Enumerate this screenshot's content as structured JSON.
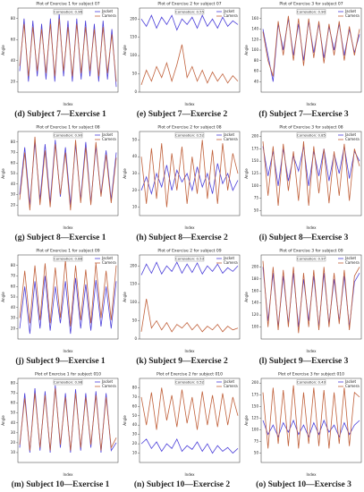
{
  "chart_data": [
    {
      "type": "line",
      "title": "Plot of Exercise 1 for subject 07",
      "caption": "(d) Subject 7—Exercise 1",
      "correlation_label": "Correlation: 0.96",
      "xlabel": "Index",
      "ylabel": "Angle",
      "ylim": [
        10,
        90
      ],
      "yticks": [
        20,
        40,
        60,
        80
      ],
      "series": [
        {
          "name": "Jacket",
          "color": "#4b3fd9",
          "values": [
            30,
            80,
            20,
            78,
            25,
            75,
            22,
            80,
            20,
            85,
            25,
            78,
            20,
            80,
            22,
            78,
            25,
            75,
            20,
            78,
            22,
            70,
            15
          ]
        },
        {
          "name": "Camera",
          "color": "#c0603a",
          "values": [
            35,
            75,
            25,
            72,
            30,
            70,
            28,
            75,
            25,
            80,
            30,
            72,
            25,
            75,
            28,
            72,
            30,
            70,
            25,
            72,
            28,
            65,
            20
          ]
        }
      ]
    },
    {
      "type": "line",
      "title": "Plot of Exercise 2 for subject 07",
      "caption": "(e) Subject 7—Exercise 2",
      "correlation_label": "Correlation: 0.55",
      "xlabel": "Index",
      "ylabel": "Angle",
      "ylim": [
        0,
        230
      ],
      "yticks": [
        0,
        50,
        100,
        150,
        200
      ],
      "series": [
        {
          "name": "Jacket",
          "color": "#4b3fd9",
          "values": [
            200,
            180,
            210,
            175,
            205,
            185,
            210,
            170,
            200,
            185,
            205,
            175,
            210,
            180,
            200,
            175,
            205,
            180,
            195,
            185
          ]
        },
        {
          "name": "Camera",
          "color": "#c0603a",
          "values": [
            20,
            60,
            30,
            70,
            40,
            80,
            30,
            75,
            130,
            40,
            70,
            30,
            60,
            25,
            55,
            30,
            50,
            25,
            45,
            30
          ]
        }
      ]
    },
    {
      "type": "line",
      "title": "Plot of Exercise 3 for subject 07",
      "caption": "(f) Subject 7—Exercise 3",
      "correlation_label": "Correlation: 0.90",
      "xlabel": "Index",
      "ylabel": "Angle",
      "ylim": [
        20,
        180
      ],
      "yticks": [
        40,
        60,
        80,
        100,
        120,
        140,
        160
      ],
      "series": [
        {
          "name": "Jacket",
          "color": "#4b3fd9",
          "values": [
            140,
            90,
            40,
            150,
            100,
            160,
            90,
            150,
            80,
            155,
            95,
            150,
            85,
            145,
            100,
            150,
            90,
            140,
            95,
            130
          ]
        },
        {
          "name": "Camera",
          "color": "#c0603a",
          "values": [
            135,
            80,
            50,
            155,
            90,
            165,
            80,
            160,
            70,
            160,
            85,
            155,
            75,
            150,
            90,
            155,
            80,
            145,
            90,
            140
          ]
        }
      ]
    },
    {
      "type": "line",
      "title": "Plot of Exercise 1 for subject 08",
      "caption": "(g) Subject 8—Exercise 1",
      "correlation_label": "Correlation: 0.90",
      "xlabel": "Index",
      "ylabel": "Angle",
      "ylim": [
        10,
        90
      ],
      "yticks": [
        20,
        30,
        40,
        50,
        60,
        70,
        80
      ],
      "series": [
        {
          "name": "Jacket",
          "color": "#4b3fd9",
          "values": [
            30,
            75,
            20,
            80,
            25,
            78,
            22,
            82,
            28,
            75,
            20,
            78,
            25,
            80,
            22,
            76,
            30,
            72,
            25,
            70
          ]
        },
        {
          "name": "Camera",
          "color": "#c0603a",
          "values": [
            25,
            70,
            15,
            85,
            20,
            72,
            18,
            78,
            30,
            70,
            15,
            82,
            22,
            75,
            20,
            80,
            28,
            68,
            22,
            65
          ]
        }
      ]
    },
    {
      "type": "line",
      "title": "Plot of Exercise 2 for subject 08",
      "caption": "(h) Subject 8—Exercise 2",
      "correlation_label": "Correlation: 0.52",
      "xlabel": "Index",
      "ylabel": "Angle",
      "ylim": [
        5,
        55
      ],
      "yticks": [
        10,
        20,
        30,
        40,
        50
      ],
      "series": [
        {
          "name": "Jacket",
          "color": "#4b3fd9",
          "values": [
            20,
            28,
            18,
            30,
            22,
            35,
            20,
            32,
            25,
            30,
            20,
            34,
            22,
            30,
            18,
            36,
            24,
            30,
            20,
            26
          ]
        },
        {
          "name": "Camera",
          "color": "#c0603a",
          "values": [
            40,
            12,
            45,
            15,
            48,
            10,
            42,
            20,
            46,
            12,
            40,
            18,
            50,
            15,
            44,
            12,
            48,
            20,
            42,
            30
          ]
        }
      ]
    },
    {
      "type": "line",
      "title": "Plot of Exercise 3 for subject 08",
      "caption": "(i) Subject 8—Exercise 3",
      "correlation_label": "Correlation: 0.85",
      "xlabel": "Index",
      "ylabel": "Angle",
      "ylim": [
        40,
        210
      ],
      "yticks": [
        50,
        75,
        100,
        125,
        150,
        175,
        200
      ],
      "series": [
        {
          "name": "Jacket",
          "color": "#4b3fd9",
          "values": [
            180,
            120,
            170,
            100,
            175,
            110,
            160,
            130,
            180,
            100,
            170,
            120,
            175,
            110,
            165,
            125,
            180,
            115,
            170,
            150
          ]
        },
        {
          "name": "Camera",
          "color": "#c0603a",
          "values": [
            190,
            80,
            180,
            60,
            185,
            90,
            170,
            70,
            190,
            60,
            180,
            85,
            175,
            65,
            170,
            80,
            185,
            70,
            175,
            140
          ]
        }
      ]
    },
    {
      "type": "line",
      "title": "Plot of Exercise 1 for subject 09",
      "caption": "(j) Subject 9—Exercise 1",
      "correlation_label": "Correlation: 0.88",
      "xlabel": "Index",
      "ylabel": "Angle",
      "ylim": [
        10,
        90
      ],
      "yticks": [
        20,
        30,
        40,
        50,
        60,
        70,
        80
      ],
      "series": [
        {
          "name": "Jacket",
          "color": "#4b3fd9",
          "values": [
            20,
            60,
            15,
            65,
            20,
            70,
            18,
            60,
            25,
            65,
            15,
            68,
            20,
            62,
            18,
            66,
            22,
            60,
            20,
            65
          ]
        },
        {
          "name": "Camera",
          "color": "#c0603a",
          "values": [
            30,
            75,
            25,
            80,
            28,
            82,
            25,
            78,
            30,
            85,
            22,
            80,
            28,
            76,
            25,
            82,
            30,
            75,
            28,
            80
          ]
        }
      ]
    },
    {
      "type": "line",
      "title": "Plot of Exercise 2 for subject 09",
      "caption": "(k) Subject 9—Exercise 2",
      "correlation_label": "Correlation: 0.53",
      "xlabel": "Index",
      "ylabel": "Angle",
      "ylim": [
        0,
        230
      ],
      "yticks": [
        0,
        50,
        100,
        150,
        200
      ],
      "series": [
        {
          "name": "Jacket",
          "color": "#4b3fd9",
          "values": [
            175,
            205,
            180,
            210,
            178,
            200,
            185,
            210,
            180,
            205,
            182,
            208,
            178,
            200,
            185,
            205,
            180,
            195,
            185,
            200
          ]
        },
        {
          "name": "Camera",
          "color": "#c0603a",
          "values": [
            20,
            110,
            30,
            50,
            25,
            45,
            20,
            40,
            30,
            45,
            25,
            40,
            20,
            35,
            25,
            40,
            20,
            35,
            25,
            30
          ]
        }
      ]
    },
    {
      "type": "line",
      "title": "Plot of Exercise 3 for subject 09",
      "caption": "(l) Subject 9—Exercise 3",
      "correlation_label": "Correlation: 0.97",
      "xlabel": "Index",
      "ylabel": "Angle",
      "ylim": [
        80,
        220
      ],
      "yticks": [
        100,
        120,
        140,
        160,
        180,
        200
      ],
      "series": [
        {
          "name": "Jacket",
          "color": "#4b3fd9",
          "values": [
            200,
            110,
            190,
            100,
            185,
            105,
            190,
            100,
            180,
            110,
            185,
            100,
            190,
            105,
            180,
            110,
            185,
            100,
            175,
            190
          ]
        },
        {
          "name": "Camera",
          "color": "#c0603a",
          "values": [
            210,
            100,
            200,
            95,
            195,
            100,
            200,
            90,
            190,
            100,
            195,
            95,
            200,
            100,
            190,
            105,
            195,
            95,
            185,
            200
          ]
        }
      ]
    },
    {
      "type": "line",
      "title": "Plot of Exercise 1 for subject 010",
      "caption": "(m) Subject 10—Exercise 1",
      "correlation_label": "Correlation: 0.98",
      "xlabel": "Index",
      "ylabel": "Angle",
      "ylim": [
        0,
        85
      ],
      "yticks": [
        10,
        20,
        30,
        40,
        50,
        60,
        70,
        80
      ],
      "series": [
        {
          "name": "Jacket",
          "color": "#4b3fd9",
          "values": [
            15,
            70,
            10,
            75,
            12,
            72,
            10,
            78,
            15,
            70,
            10,
            74,
            12,
            70,
            15,
            72,
            10,
            70,
            12,
            20
          ]
        },
        {
          "name": "Camera",
          "color": "#c0603a",
          "values": [
            18,
            65,
            12,
            70,
            15,
            68,
            12,
            75,
            18,
            66,
            12,
            70,
            15,
            66,
            18,
            68,
            12,
            66,
            15,
            25
          ]
        }
      ]
    },
    {
      "type": "line",
      "title": "Plot of Exercise 2 for subject 010",
      "caption": "(n) Subject 10—Exercise 2",
      "correlation_label": "Correlation: 0.52",
      "xlabel": "Index",
      "ylabel": "Angle",
      "ylim": [
        0,
        90
      ],
      "yticks": [
        10,
        20,
        30,
        40,
        50,
        60,
        70,
        80
      ],
      "series": [
        {
          "name": "Jacket",
          "color": "#4b3fd9",
          "values": [
            20,
            25,
            15,
            22,
            12,
            20,
            15,
            25,
            12,
            18,
            14,
            22,
            12,
            20,
            10,
            18,
            12,
            16,
            10,
            15
          ]
        },
        {
          "name": "Camera",
          "color": "#c0603a",
          "values": [
            70,
            40,
            75,
            35,
            80,
            45,
            72,
            38,
            78,
            42,
            70,
            35,
            76,
            40,
            72,
            38,
            74,
            40,
            70,
            50
          ]
        }
      ]
    },
    {
      "type": "line",
      "title": "Plot of Exercise 3 for subject 010",
      "caption": "(o) Subject 10—Exercise 3",
      "correlation_label": "Correlation: 0.43",
      "xlabel": "Index",
      "ylabel": "Angle",
      "ylim": [
        30,
        210
      ],
      "yticks": [
        50,
        75,
        100,
        125,
        150,
        175,
        200
      ],
      "series": [
        {
          "name": "Jacket",
          "color": "#4b3fd9",
          "values": [
            120,
            90,
            110,
            85,
            115,
            95,
            120,
            90,
            110,
            85,
            115,
            90,
            120,
            95,
            110,
            85,
            115,
            90,
            110,
            120
          ]
        },
        {
          "name": "Camera",
          "color": "#c0603a",
          "values": [
            180,
            60,
            190,
            70,
            185,
            65,
            195,
            60,
            180,
            70,
            190,
            65,
            185,
            60,
            180,
            70,
            190,
            65,
            180,
            170
          ]
        }
      ]
    }
  ]
}
